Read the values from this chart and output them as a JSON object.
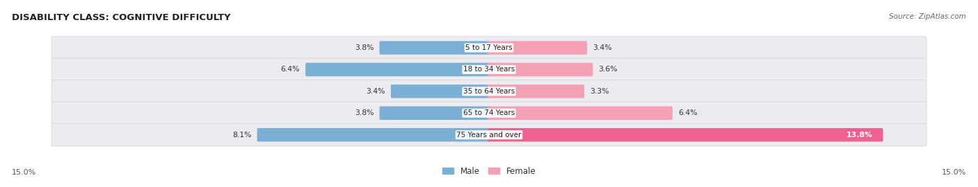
{
  "title": "DISABILITY CLASS: COGNITIVE DIFFICULTY",
  "source": "Source: ZipAtlas.com",
  "categories": [
    "5 to 17 Years",
    "18 to 34 Years",
    "35 to 64 Years",
    "65 to 74 Years",
    "75 Years and over"
  ],
  "male_values": [
    3.8,
    6.4,
    3.4,
    3.8,
    8.1
  ],
  "female_values": [
    3.4,
    3.6,
    3.3,
    6.4,
    13.8
  ],
  "x_max": 15.0,
  "male_color": "#7bafd4",
  "female_color_light": "#f4a0b5",
  "female_color_dark": "#f06090",
  "row_bg_color": "#ebebf0",
  "label_fontsize": 8.0,
  "title_fontsize": 9.5,
  "legend_male": "Male",
  "legend_female": "Female",
  "axis_label_left": "15.0%",
  "axis_label_right": "15.0%"
}
